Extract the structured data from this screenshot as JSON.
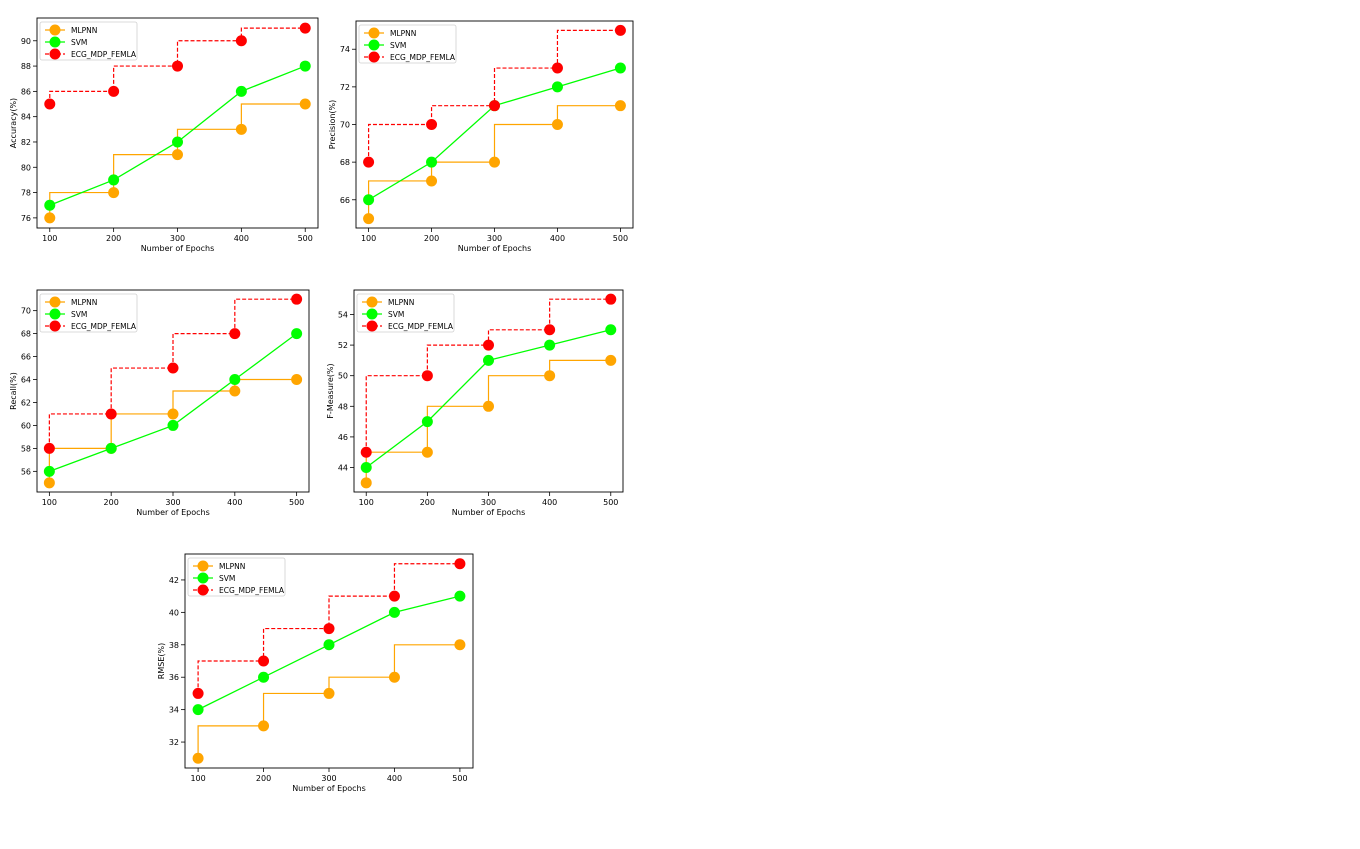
{
  "chart_data": [
    {
      "type": "line",
      "xlabel": "Number of Epochs",
      "ylabel": "Accuracy(%)",
      "x": [
        100,
        200,
        300,
        400,
        500
      ],
      "ylim": [
        75.2,
        91.8
      ],
      "yticks": [
        76,
        78,
        80,
        82,
        84,
        86,
        88,
        90
      ],
      "legend": "top-left",
      "grid": false,
      "series": [
        {
          "name": "MLPNN",
          "values": [
            76,
            78,
            81,
            83,
            85
          ],
          "color": "#ffa500",
          "style": "step"
        },
        {
          "name": "SVM",
          "values": [
            77,
            79,
            82,
            86,
            88
          ],
          "color": "#00ff00",
          "style": "line"
        },
        {
          "name": "ECG_MDP_FEMLA",
          "values": [
            85,
            86,
            88,
            90,
            91
          ],
          "color": "#ff0000",
          "style": "dashed-step"
        }
      ]
    },
    {
      "type": "line",
      "xlabel": "Number of Epochs",
      "ylabel": "Precision(%)",
      "x": [
        100,
        200,
        300,
        400,
        500
      ],
      "ylim": [
        64.5,
        75.5
      ],
      "yticks": [
        66,
        68,
        70,
        72,
        74
      ],
      "legend": "top-left",
      "grid": false,
      "series": [
        {
          "name": "MLPNN",
          "values": [
            65,
            67,
            68,
            70,
            71
          ],
          "color": "#ffa500",
          "style": "step"
        },
        {
          "name": "SVM",
          "values": [
            66,
            68,
            71,
            72,
            73
          ],
          "color": "#00ff00",
          "style": "line"
        },
        {
          "name": "ECG_MDP_FEMLA",
          "values": [
            68,
            70,
            71,
            73,
            75
          ],
          "color": "#ff0000",
          "style": "dashed-step"
        }
      ]
    },
    {
      "type": "line",
      "xlabel": "Number of Epochs",
      "ylabel": "Recall(%)",
      "x": [
        100,
        200,
        300,
        400,
        500
      ],
      "ylim": [
        54.2,
        71.8
      ],
      "yticks": [
        56,
        58,
        60,
        62,
        64,
        66,
        68,
        70
      ],
      "legend": "top-left",
      "grid": false,
      "series": [
        {
          "name": "MLPNN",
          "values": [
            55,
            58,
            61,
            63,
            64
          ],
          "color": "#ffa500",
          "style": "step"
        },
        {
          "name": "SVM",
          "values": [
            56,
            58,
            60,
            64,
            68
          ],
          "color": "#00ff00",
          "style": "line"
        },
        {
          "name": "ECG_MDP_FEMLA",
          "values": [
            58,
            61,
            65,
            68,
            71
          ],
          "color": "#ff0000",
          "style": "dashed-step"
        }
      ]
    },
    {
      "type": "line",
      "xlabel": "Number of Epochs",
      "ylabel": "F-Measure(%)",
      "x": [
        100,
        200,
        300,
        400,
        500
      ],
      "ylim": [
        42.4,
        55.6
      ],
      "yticks": [
        44,
        46,
        48,
        50,
        52,
        54
      ],
      "legend": "top-left",
      "grid": false,
      "series": [
        {
          "name": "MLPNN",
          "values": [
            43,
            45,
            48,
            50,
            51
          ],
          "color": "#ffa500",
          "style": "step"
        },
        {
          "name": "SVM",
          "values": [
            44,
            47,
            51,
            52,
            53
          ],
          "color": "#00ff00",
          "style": "line"
        },
        {
          "name": "ECG_MDP_FEMLA",
          "values": [
            45,
            50,
            52,
            53,
            55
          ],
          "color": "#ff0000",
          "style": "dashed-step"
        }
      ]
    },
    {
      "type": "line",
      "xlabel": "Number of Epochs",
      "ylabel": "RMSE(%)",
      "x": [
        100,
        200,
        300,
        400,
        500
      ],
      "ylim": [
        30.4,
        43.6
      ],
      "yticks": [
        32,
        34,
        36,
        38,
        40,
        42
      ],
      "legend": "top-left",
      "grid": false,
      "series": [
        {
          "name": "MLPNN",
          "values": [
            31,
            33,
            35,
            36,
            38
          ],
          "color": "#ffa500",
          "style": "step"
        },
        {
          "name": "SVM",
          "values": [
            34,
            36,
            38,
            40,
            41
          ],
          "color": "#00ff00",
          "style": "line"
        },
        {
          "name": "ECG_MDP_FEMLA",
          "values": [
            35,
            37,
            39,
            41,
            43
          ],
          "color": "#ff0000",
          "style": "dashed-step"
        }
      ]
    }
  ]
}
